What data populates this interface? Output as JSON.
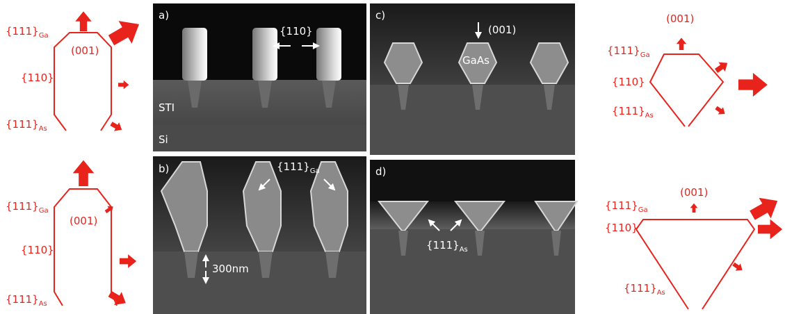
{
  "schematics": [
    {
      "top": "(001)",
      "ga": {
        "text": "{111}",
        "sub": "Ga"
      },
      "side": "{110}",
      "as": {
        "text": "{111}",
        "sub": "As"
      }
    },
    {
      "top": "(001)",
      "ga": {
        "text": "{111}",
        "sub": "Ga"
      },
      "side": "{110}",
      "as": {
        "text": "{111}",
        "sub": "As"
      }
    },
    {
      "top": "(001)",
      "ga": {
        "text": "{111}",
        "sub": "Ga"
      },
      "side": "{110}",
      "as": {
        "text": "{111}",
        "sub": "As"
      }
    },
    {
      "top": "(001)",
      "ga": {
        "text": "{111}",
        "sub": "Ga"
      },
      "side": "{110}",
      "as": {
        "text": "{111}",
        "sub": "As"
      }
    }
  ],
  "panels": {
    "a": {
      "label": "a)",
      "facet": "{110}",
      "sti": "STI",
      "si": "Si"
    },
    "b": {
      "label": "b)",
      "facet": {
        "text": "{111}",
        "sub": "Ga"
      },
      "scale": "300nm"
    },
    "c": {
      "label": "c)",
      "direction": "(001)",
      "material": "GaAs"
    },
    "d": {
      "label": "d)",
      "facet": {
        "text": "{111}",
        "sub": "As"
      }
    }
  }
}
